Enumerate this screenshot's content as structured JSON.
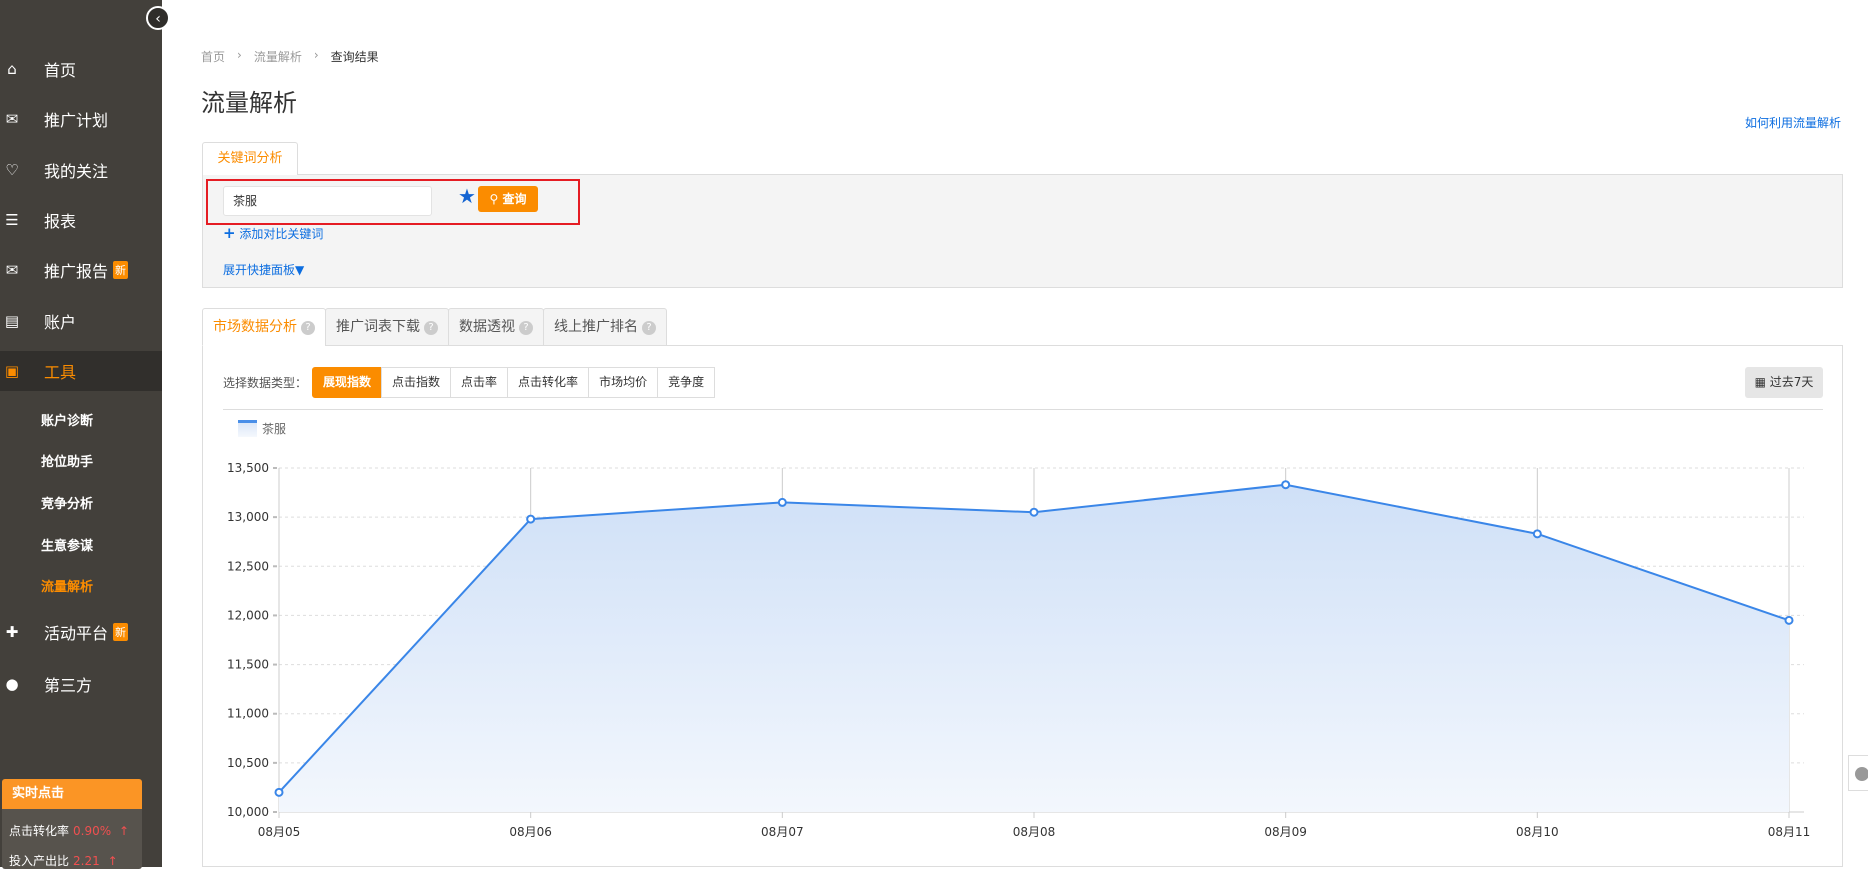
{
  "sidebar": {
    "collapse_icon": "chevron-left-circle",
    "items": [
      {
        "label": "首页",
        "icon": "home"
      },
      {
        "label": "推广计划",
        "icon": "bag"
      },
      {
        "label": "我的关注",
        "icon": "heart"
      },
      {
        "label": "报表",
        "icon": "receipt"
      },
      {
        "label": "推广报告",
        "icon": "bag",
        "badge": "新"
      },
      {
        "label": "账户",
        "icon": "id-card"
      },
      {
        "label": "工具",
        "icon": "toolbox",
        "active": true
      },
      {
        "label": "活动平台",
        "icon": "gift",
        "badge": "新"
      },
      {
        "label": "第三方",
        "icon": "puzzle"
      }
    ],
    "sub_items": [
      "账户诊断",
      "抢位助手",
      "竞争分析",
      "生意参谋",
      "流量解析"
    ],
    "active_sub": "流量解析",
    "realtime": {
      "title": "实时点击",
      "rows": [
        {
          "label": "点击转化率",
          "value": "0.90%",
          "trend": "↑"
        },
        {
          "label": "投入产出比",
          "value": "2.21",
          "trend": "↑"
        }
      ]
    }
  },
  "breadcrumb": [
    "首页",
    "流量解析",
    "查询结果"
  ],
  "page_title": "流量解析",
  "help_link": "如何利用流量解析",
  "keyword_tab": "关键词分析",
  "search": {
    "value": "茶服",
    "button": "查询",
    "add_compare": "添加对比关键词",
    "expand_panel": "展开快捷面板"
  },
  "tabs": [
    "市场数据分析",
    "推广词表下载",
    "数据透视",
    "线上推广排名"
  ],
  "data_type": {
    "label": "选择数据类型：",
    "options": [
      "展现指数",
      "点击指数",
      "点击率",
      "点击转化率",
      "市场均价",
      "竞争度"
    ],
    "selected": "展现指数"
  },
  "range_button": "过去7天",
  "colors": {
    "accent": "#fb8c00",
    "link": "#0d6ee0",
    "series": "#3a86e8",
    "sidebar": "#43403b"
  },
  "chart_data": {
    "type": "area",
    "categories": [
      "08月05",
      "08月06",
      "08月07",
      "08月08",
      "08月09",
      "08月10",
      "08月11"
    ],
    "series": [
      {
        "name": "茶服",
        "values": [
          10200,
          12980,
          13150,
          13050,
          13330,
          12830,
          11950
        ]
      }
    ],
    "ylim": [
      10000,
      13500
    ],
    "yticks": [
      "10,000",
      "10,500",
      "11,000",
      "11,500",
      "12,000",
      "12,500",
      "13,000",
      "13,500"
    ],
    "grid": true,
    "legend": "top-left"
  }
}
